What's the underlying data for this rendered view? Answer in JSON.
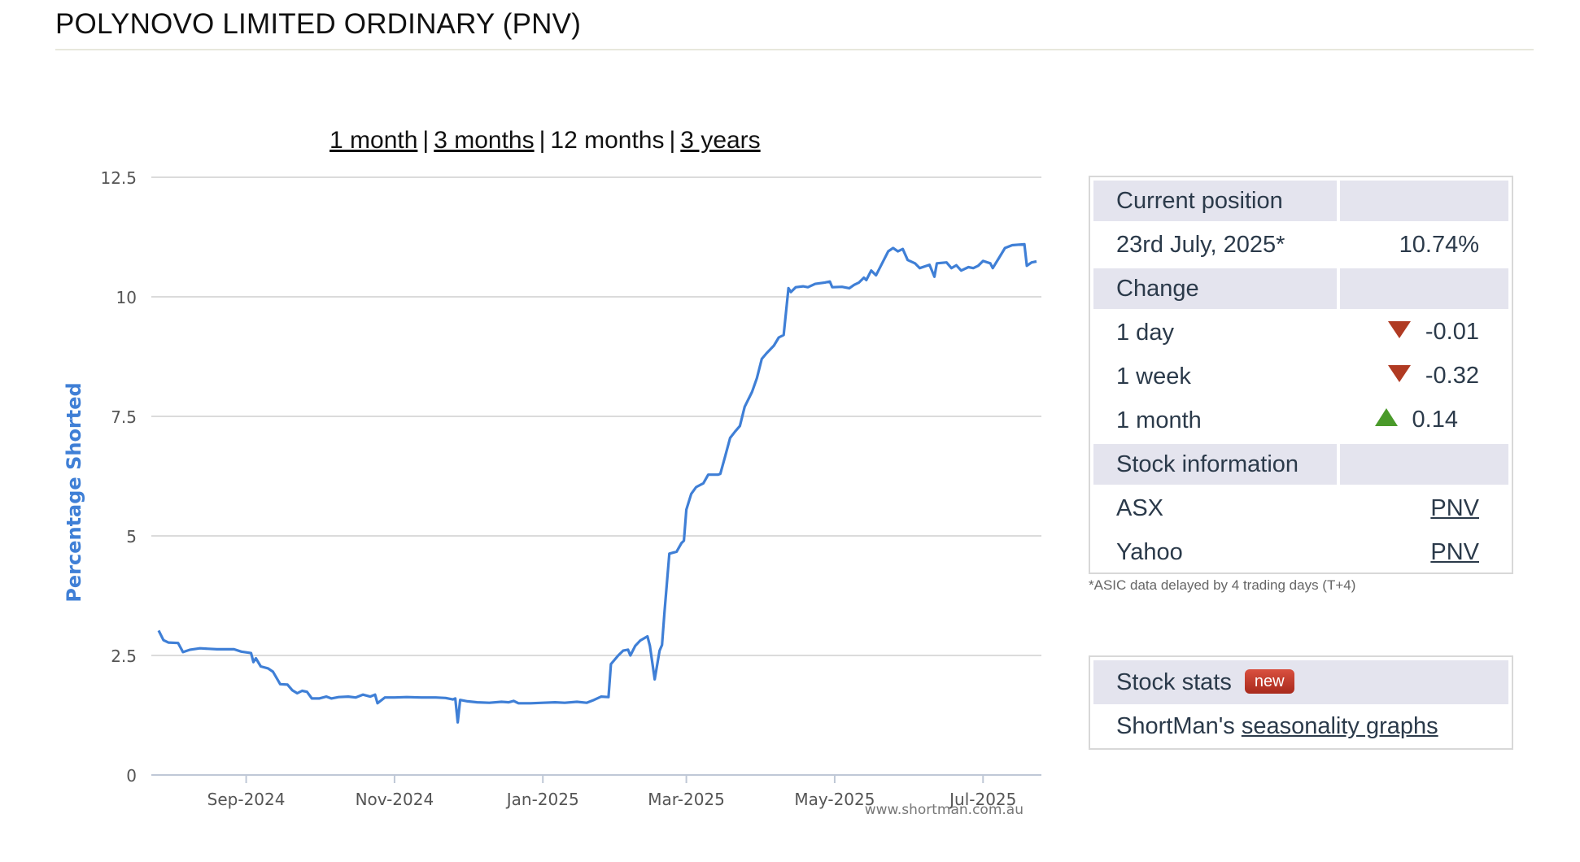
{
  "page": {
    "title": "POLYNOVO LIMITED ORDINARY (PNV)"
  },
  "range_links": {
    "one_month": "1 month",
    "three_months": "3 months",
    "twelve_months": "12 months",
    "three_years": "3 years",
    "separator": "|"
  },
  "info": {
    "current_header": "Current position",
    "date_label": "23rd July, 2025*",
    "current_value": "10.74%",
    "change_header": "Change",
    "changes": [
      {
        "label": "1 day",
        "value": "-0.01",
        "direction": "down"
      },
      {
        "label": "1 week",
        "value": "-0.32",
        "direction": "down"
      },
      {
        "label": "1 month",
        "value": "0.14",
        "direction": "up"
      }
    ],
    "stock_header": "Stock information",
    "asx_label": "ASX",
    "asx_value": "PNV",
    "yahoo_label": "Yahoo",
    "yahoo_value": "PNV",
    "note": "*ASIC data delayed by 4 trading days (T+4)",
    "down_color": "#b03a22",
    "up_color": "#4a9a2a"
  },
  "stats": {
    "header": "Stock stats",
    "badge": "new",
    "row_prefix": "ShortMan's",
    "row_link": "seasonality graphs"
  },
  "chart_data": {
    "type": "line",
    "title": "",
    "xlabel": "",
    "ylabel": "Percentage Shorted",
    "ylim": [
      0,
      12.5
    ],
    "yticks": [
      0,
      2.5,
      5,
      7.5,
      10,
      12.5
    ],
    "ytick_labels": [
      "0",
      "2.5",
      "5",
      "7.5",
      "10",
      "12.5"
    ],
    "xlim": [
      "2024-07-24",
      "2025-07-25"
    ],
    "xticks": [
      {
        "date": "2024-09-01",
        "label": "Sep-2024"
      },
      {
        "date": "2024-11-01",
        "label": "Nov-2024"
      },
      {
        "date": "2025-01-01",
        "label": "Jan-2025"
      },
      {
        "date": "2025-03-01",
        "label": "Mar-2025"
      },
      {
        "date": "2025-05-01",
        "label": "May-2025"
      },
      {
        "date": "2025-07-01",
        "label": "Jul-2025"
      }
    ],
    "grid": true,
    "line_color": "#3f7fd6",
    "credit": "www.shortman.com.au",
    "series": [
      {
        "name": "",
        "points": [
          [
            "2024-07-27",
            3.02
          ],
          [
            "2024-07-29",
            2.82
          ],
          [
            "2024-07-31",
            2.77
          ],
          [
            "2024-08-04",
            2.76
          ],
          [
            "2024-08-06",
            2.57
          ],
          [
            "2024-08-09",
            2.62
          ],
          [
            "2024-08-13",
            2.65
          ],
          [
            "2024-08-20",
            2.63
          ],
          [
            "2024-08-27",
            2.63
          ],
          [
            "2024-08-30",
            2.58
          ],
          [
            "2024-09-03",
            2.55
          ],
          [
            "2024-09-04",
            2.36
          ],
          [
            "2024-09-05",
            2.44
          ],
          [
            "2024-09-07",
            2.27
          ],
          [
            "2024-09-10",
            2.23
          ],
          [
            "2024-09-12",
            2.16
          ],
          [
            "2024-09-15",
            1.9
          ],
          [
            "2024-09-18",
            1.89
          ],
          [
            "2024-09-20",
            1.77
          ],
          [
            "2024-09-22",
            1.71
          ],
          [
            "2024-09-24",
            1.76
          ],
          [
            "2024-09-26",
            1.74
          ],
          [
            "2024-09-28",
            1.6
          ],
          [
            "2024-10-01",
            1.6
          ],
          [
            "2024-10-04",
            1.64
          ],
          [
            "2024-10-06",
            1.6
          ],
          [
            "2024-10-09",
            1.63
          ],
          [
            "2024-10-13",
            1.64
          ],
          [
            "2024-10-16",
            1.62
          ],
          [
            "2024-10-19",
            1.68
          ],
          [
            "2024-10-22",
            1.64
          ],
          [
            "2024-10-24",
            1.68
          ],
          [
            "2024-10-25",
            1.5
          ],
          [
            "2024-10-28",
            1.62
          ],
          [
            "2024-11-01",
            1.62
          ],
          [
            "2024-11-06",
            1.63
          ],
          [
            "2024-11-12",
            1.62
          ],
          [
            "2024-11-18",
            1.62
          ],
          [
            "2024-11-22",
            1.61
          ],
          [
            "2024-11-25",
            1.58
          ],
          [
            "2024-11-26",
            1.6
          ],
          [
            "2024-11-27",
            1.1
          ],
          [
            "2024-11-28",
            1.57
          ],
          [
            "2024-12-01",
            1.54
          ],
          [
            "2024-12-05",
            1.52
          ],
          [
            "2024-12-10",
            1.51
          ],
          [
            "2024-12-15",
            1.53
          ],
          [
            "2024-12-18",
            1.52
          ],
          [
            "2024-12-20",
            1.55
          ],
          [
            "2024-12-22",
            1.5
          ],
          [
            "2024-12-27",
            1.5
          ],
          [
            "2025-01-01",
            1.51
          ],
          [
            "2025-01-06",
            1.52
          ],
          [
            "2025-01-10",
            1.51
          ],
          [
            "2025-01-15",
            1.53
          ],
          [
            "2025-01-19",
            1.51
          ],
          [
            "2025-01-22",
            1.57
          ],
          [
            "2025-01-25",
            1.64
          ],
          [
            "2025-01-28",
            1.63
          ],
          [
            "2025-01-29",
            2.32
          ],
          [
            "2025-02-01",
            2.5
          ],
          [
            "2025-02-03",
            2.6
          ],
          [
            "2025-02-05",
            2.62
          ],
          [
            "2025-02-06",
            2.5
          ],
          [
            "2025-02-08",
            2.7
          ],
          [
            "2025-02-10",
            2.81
          ],
          [
            "2025-02-13",
            2.9
          ],
          [
            "2025-02-14",
            2.7
          ],
          [
            "2025-02-16",
            2.0
          ],
          [
            "2025-02-18",
            2.6
          ],
          [
            "2025-02-19",
            2.72
          ],
          [
            "2025-02-20",
            3.4
          ],
          [
            "2025-02-22",
            4.63
          ],
          [
            "2025-02-25",
            4.67
          ],
          [
            "2025-02-27",
            4.85
          ],
          [
            "2025-02-28",
            4.9
          ],
          [
            "2025-03-01",
            5.55
          ],
          [
            "2025-03-03",
            5.88
          ],
          [
            "2025-03-05",
            6.02
          ],
          [
            "2025-03-08",
            6.1
          ],
          [
            "2025-03-10",
            6.28
          ],
          [
            "2025-03-14",
            6.28
          ],
          [
            "2025-03-15",
            6.3
          ],
          [
            "2025-03-17",
            6.67
          ],
          [
            "2025-03-19",
            7.05
          ],
          [
            "2025-03-21",
            7.18
          ],
          [
            "2025-03-23",
            7.3
          ],
          [
            "2025-03-25",
            7.7
          ],
          [
            "2025-03-28",
            8.01
          ],
          [
            "2025-03-30",
            8.3
          ],
          [
            "2025-04-01",
            8.7
          ],
          [
            "2025-04-03",
            8.82
          ],
          [
            "2025-04-06",
            8.98
          ],
          [
            "2025-04-08",
            9.15
          ],
          [
            "2025-04-10",
            9.2
          ],
          [
            "2025-04-11",
            9.68
          ],
          [
            "2025-04-12",
            10.18
          ],
          [
            "2025-04-13",
            10.1
          ],
          [
            "2025-04-15",
            10.2
          ],
          [
            "2025-04-18",
            10.22
          ],
          [
            "2025-04-20",
            10.2
          ],
          [
            "2025-04-23",
            10.27
          ],
          [
            "2025-04-27",
            10.3
          ],
          [
            "2025-04-29",
            10.32
          ],
          [
            "2025-04-30",
            10.2
          ],
          [
            "2025-05-04",
            10.21
          ],
          [
            "2025-05-07",
            10.18
          ],
          [
            "2025-05-09",
            10.25
          ],
          [
            "2025-05-11",
            10.3
          ],
          [
            "2025-05-13",
            10.4
          ],
          [
            "2025-05-14",
            10.35
          ],
          [
            "2025-05-16",
            10.55
          ],
          [
            "2025-05-18",
            10.45
          ],
          [
            "2025-05-20",
            10.65
          ],
          [
            "2025-05-23",
            10.95
          ],
          [
            "2025-05-25",
            11.02
          ],
          [
            "2025-05-27",
            10.95
          ],
          [
            "2025-05-29",
            11.0
          ],
          [
            "2025-05-31",
            10.77
          ],
          [
            "2025-06-03",
            10.7
          ],
          [
            "2025-06-05",
            10.6
          ],
          [
            "2025-06-09",
            10.67
          ],
          [
            "2025-06-11",
            10.42
          ],
          [
            "2025-06-12",
            10.7
          ],
          [
            "2025-06-16",
            10.72
          ],
          [
            "2025-06-18",
            10.6
          ],
          [
            "2025-06-20",
            10.66
          ],
          [
            "2025-06-22",
            10.55
          ],
          [
            "2025-06-25",
            10.62
          ],
          [
            "2025-06-27",
            10.6
          ],
          [
            "2025-06-29",
            10.65
          ],
          [
            "2025-07-01",
            10.75
          ],
          [
            "2025-07-04",
            10.7
          ],
          [
            "2025-07-05",
            10.6
          ],
          [
            "2025-07-08",
            10.85
          ],
          [
            "2025-07-10",
            11.02
          ],
          [
            "2025-07-13",
            11.08
          ],
          [
            "2025-07-18",
            11.1
          ],
          [
            "2025-07-19",
            10.65
          ],
          [
            "2025-07-21",
            10.72
          ],
          [
            "2025-07-23",
            10.74
          ]
        ]
      }
    ]
  }
}
